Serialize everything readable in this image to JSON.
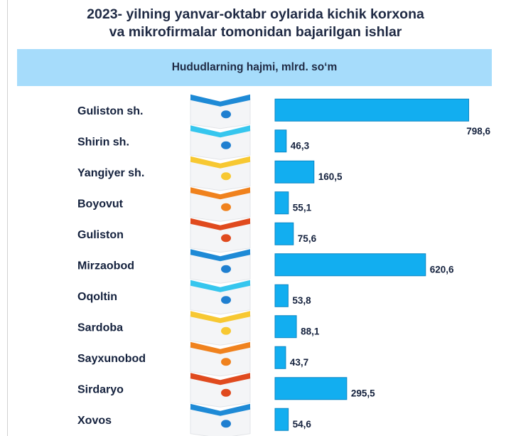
{
  "title_line1": "2023- yilning yanvar-oktabr oylarida kichik korxona",
  "title_line2": "va mikrofirmalar tomonidan bajarilgan ishlar",
  "chart_data": {
    "type": "bar",
    "orientation": "horizontal",
    "subtitle": "Hududlarning hajmi, mlrd. so‘m",
    "categories": [
      "Guliston sh.",
      "Shirin sh.",
      "Yangiyer sh.",
      "Boyovut",
      "Guliston",
      "Mirzaobod",
      "Oqoltin",
      "Sardoba",
      "Sayxunobod",
      "Sirdaryo",
      "Xovos"
    ],
    "values": [
      798.6,
      46.3,
      160.5,
      55.1,
      75.6,
      620.6,
      53.8,
      88.1,
      43.7,
      295.5,
      54.6
    ],
    "value_labels": [
      "798,6",
      "46,3",
      "160,5",
      "55,1",
      "75,6",
      "620,6",
      "53,8",
      "88,1",
      "43,7",
      "295,5",
      "54,6"
    ],
    "xlim": [
      0,
      800
    ],
    "grid": false,
    "bar_color": "#12aef0"
  },
  "decor_colors": [
    "#1e8ad6",
    "#36c6ee",
    "#f7c832",
    "#f0821e",
    "#e04a1e"
  ],
  "decor_accent": "#1f7fd0"
}
